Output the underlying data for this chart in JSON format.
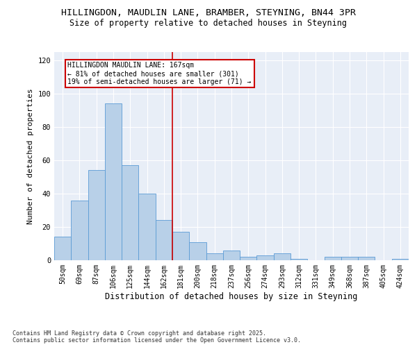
{
  "title_line1": "HILLINGDON, MAUDLIN LANE, BRAMBER, STEYNING, BN44 3PR",
  "title_line2": "Size of property relative to detached houses in Steyning",
  "xlabel": "Distribution of detached houses by size in Steyning",
  "ylabel": "Number of detached properties",
  "categories": [
    "50sqm",
    "69sqm",
    "87sqm",
    "106sqm",
    "125sqm",
    "144sqm",
    "162sqm",
    "181sqm",
    "200sqm",
    "218sqm",
    "237sqm",
    "256sqm",
    "274sqm",
    "293sqm",
    "312sqm",
    "331sqm",
    "349sqm",
    "368sqm",
    "387sqm",
    "405sqm",
    "424sqm"
  ],
  "values": [
    14,
    36,
    54,
    94,
    57,
    40,
    24,
    17,
    11,
    4,
    6,
    2,
    3,
    4,
    1,
    0,
    2,
    2,
    2,
    0,
    1
  ],
  "bar_color": "#b8d0e8",
  "bar_edge_color": "#5b9bd5",
  "vline_x": 6.5,
  "vline_color": "#cc0000",
  "annotation_text": "HILLINGDON MAUDLIN LANE: 167sqm\n← 81% of detached houses are smaller (301)\n19% of semi-detached houses are larger (71) →",
  "annotation_box_edgecolor": "#cc0000",
  "ylim": [
    0,
    125
  ],
  "yticks": [
    0,
    20,
    40,
    60,
    80,
    100,
    120
  ],
  "bg_color": "#e8eef7",
  "grid_color": "#ffffff",
  "footer_text": "Contains HM Land Registry data © Crown copyright and database right 2025.\nContains public sector information licensed under the Open Government Licence v3.0."
}
